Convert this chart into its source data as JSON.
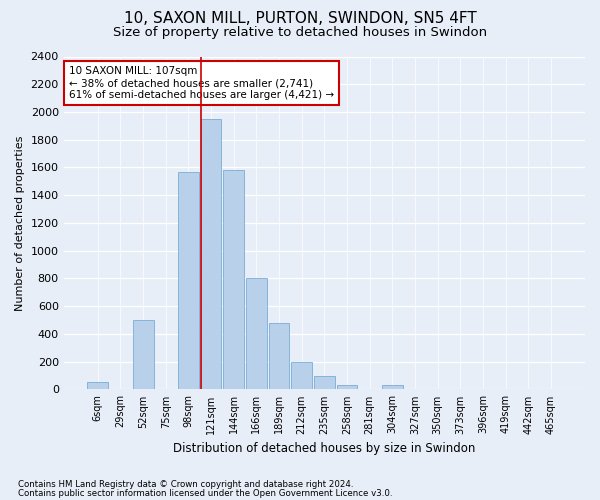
{
  "title1": "10, SAXON MILL, PURTON, SWINDON, SN5 4FT",
  "title2": "Size of property relative to detached houses in Swindon",
  "xlabel": "Distribution of detached houses by size in Swindon",
  "ylabel": "Number of detached properties",
  "categories": [
    "6sqm",
    "29sqm",
    "52sqm",
    "75sqm",
    "98sqm",
    "121sqm",
    "144sqm",
    "166sqm",
    "189sqm",
    "212sqm",
    "235sqm",
    "258sqm",
    "281sqm",
    "304sqm",
    "327sqm",
    "350sqm",
    "373sqm",
    "396sqm",
    "419sqm",
    "442sqm",
    "465sqm"
  ],
  "values": [
    50,
    0,
    500,
    0,
    1570,
    1950,
    1580,
    800,
    480,
    200,
    95,
    30,
    0,
    30,
    0,
    0,
    0,
    0,
    0,
    0,
    0
  ],
  "bar_color": "#b8d0ea",
  "bar_edge_color": "#7aaed6",
  "property_line_x": 4.57,
  "annotation_text": "10 SAXON MILL: 107sqm\n← 38% of detached houses are smaller (2,741)\n61% of semi-detached houses are larger (4,421) →",
  "annotation_box_color": "#ffffff",
  "annotation_box_edge": "#cc0000",
  "footer1": "Contains HM Land Registry data © Crown copyright and database right 2024.",
  "footer2": "Contains public sector information licensed under the Open Government Licence v3.0.",
  "background_color": "#e8eef8",
  "ylim": [
    0,
    2400
  ],
  "yticks": [
    0,
    200,
    400,
    600,
    800,
    1000,
    1200,
    1400,
    1600,
    1800,
    2000,
    2200,
    2400
  ],
  "line_color": "#cc0000",
  "title1_fontsize": 11,
  "title2_fontsize": 9.5
}
